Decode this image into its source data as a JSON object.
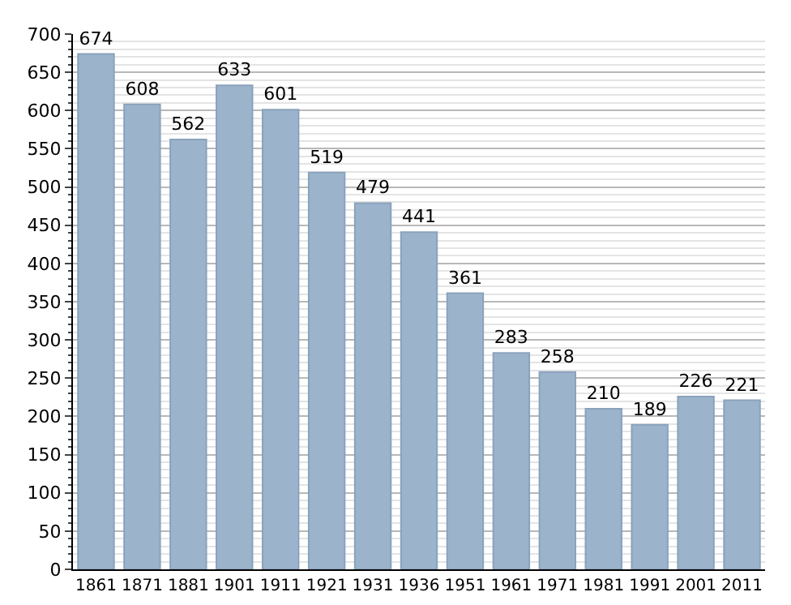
{
  "chart_data": {
    "type": "bar",
    "categories": [
      "1861",
      "1871",
      "1881",
      "1901",
      "1911",
      "1921",
      "1931",
      "1936",
      "1951",
      "1961",
      "1971",
      "1981",
      "1991",
      "2001",
      "2011"
    ],
    "values": [
      674,
      608,
      562,
      633,
      601,
      519,
      479,
      441,
      361,
      283,
      258,
      210,
      189,
      226,
      221
    ],
    "color": "#9cb3cc",
    "ylim": [
      0,
      700
    ],
    "yticks": [
      0,
      50,
      100,
      150,
      200,
      250,
      300,
      350,
      400,
      450,
      500,
      550,
      600,
      650,
      700
    ],
    "grid": "y",
    "data_labels": true
  }
}
